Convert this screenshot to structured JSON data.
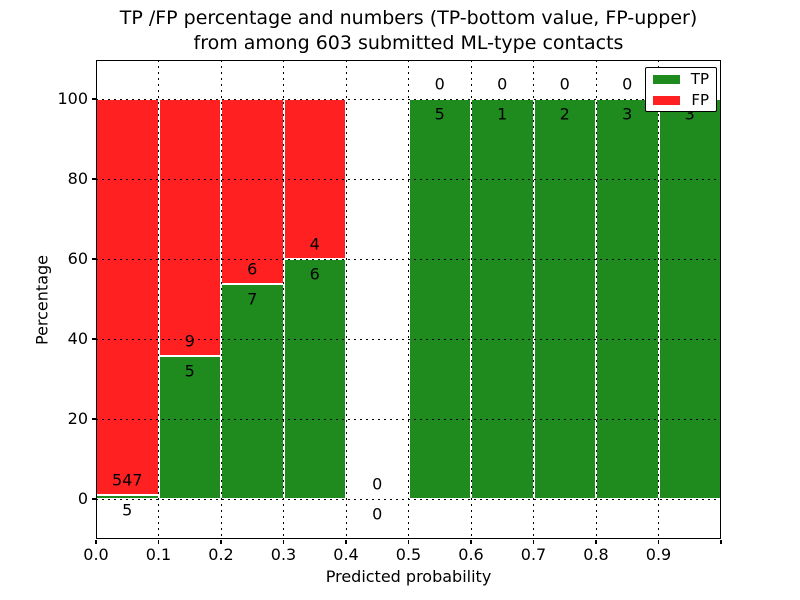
{
  "chart_data": {
    "type": "bar",
    "stacked": true,
    "title_lines": [
      "TP /FP percentage and numbers (TP-bottom value, FP-upper)",
      "from among 603 submitted ML-type contacts"
    ],
    "xlabel": "Predicted probability",
    "ylabel": "Percentage",
    "x_tick_labels": [
      "0.0",
      "0.1",
      "0.2",
      "0.3",
      "0.4",
      "0.5",
      "0.6",
      "0.7",
      "0.8",
      "0.9"
    ],
    "y_ticks": [
      0,
      20,
      40,
      60,
      80,
      100
    ],
    "ylim": [
      -10,
      110
    ],
    "grid": "dotted, drawn over bars",
    "total_contacts": 603,
    "colors": {
      "tp": "#1f8b1f",
      "fp": "#ff2121",
      "edge": "#ffffff"
    },
    "legend": {
      "position": "upper right",
      "entries": [
        {
          "label": "TP",
          "color": "#1f8b1f"
        },
        {
          "label": "FP",
          "color": "#ff2121"
        }
      ]
    },
    "bins": [
      {
        "range": "0.0-0.1",
        "tp": 5,
        "fp": 547,
        "tp_pct": 0.91,
        "fp_pct": 99.09
      },
      {
        "range": "0.1-0.2",
        "tp": 5,
        "fp": 9,
        "tp_pct": 35.71,
        "fp_pct": 64.29
      },
      {
        "range": "0.2-0.3",
        "tp": 7,
        "fp": 6,
        "tp_pct": 53.85,
        "fp_pct": 46.15
      },
      {
        "range": "0.3-0.4",
        "tp": 6,
        "fp": 4,
        "tp_pct": 60,
        "fp_pct": 40
      },
      {
        "range": "0.4-0.5",
        "tp": 0,
        "fp": 0,
        "tp_pct": 0,
        "fp_pct": 0
      },
      {
        "range": "0.5-0.6",
        "tp": 5,
        "fp": 0,
        "tp_pct": 100,
        "fp_pct": 0
      },
      {
        "range": "0.6-0.7",
        "tp": 1,
        "fp": 0,
        "tp_pct": 100,
        "fp_pct": 0
      },
      {
        "range": "0.7-0.8",
        "tp": 2,
        "fp": 0,
        "tp_pct": 100,
        "fp_pct": 0
      },
      {
        "range": "0.8-0.9",
        "tp": 3,
        "fp": 0,
        "tp_pct": 100,
        "fp_pct": 0
      },
      {
        "range": "0.9-1.0",
        "tp": 3,
        "fp": 0,
        "tp_pct": 100,
        "fp_pct": 0
      }
    ]
  }
}
